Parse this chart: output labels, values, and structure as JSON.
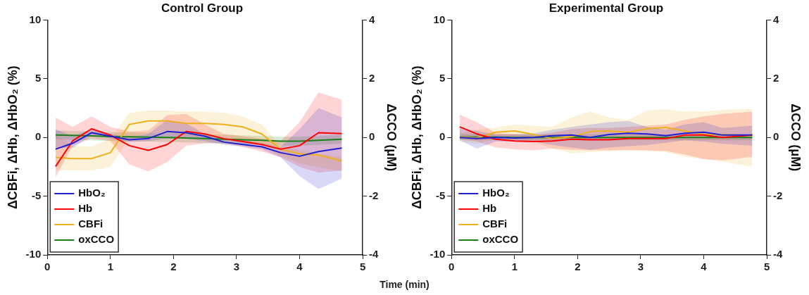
{
  "chart_data": [
    {
      "type": "line",
      "title": "Control Group",
      "xlabel": "Time (min)",
      "ylabel": "ΔCBFi, ΔHb, ΔHbO₂ (%)",
      "y2label": "ΔCCO (μM)",
      "x": [
        0.13,
        0.4,
        0.7,
        1.0,
        1.3,
        1.6,
        1.9,
        2.2,
        2.5,
        2.8,
        3.1,
        3.4,
        3.7,
        4.0,
        4.3,
        4.67
      ],
      "xlim": [
        0,
        5
      ],
      "xticks": [
        0,
        1,
        2,
        3,
        4,
        5
      ],
      "ylim": [
        -10,
        10
      ],
      "yticks": [
        -10,
        -5,
        0,
        5,
        10
      ],
      "y2lim": [
        -4,
        4
      ],
      "y2ticks": [
        -4,
        -2,
        0,
        2,
        4
      ],
      "grid": false,
      "legend": "bottom left",
      "series": [
        {
          "name": "HbO₂",
          "color": "#2020d0",
          "values": [
            -1.0,
            -0.5,
            0.4,
            0.1,
            -0.2,
            -0.1,
            0.5,
            0.4,
            0.1,
            -0.4,
            -0.6,
            -0.8,
            -1.3,
            -1.6,
            -1.2,
            -0.9
          ],
          "lower": [
            -0.9,
            -0.9,
            0.2,
            -0.1,
            -0.4,
            -0.3,
            -0.1,
            -0.1,
            -0.3,
            -0.6,
            -0.8,
            -1.0,
            -1.7,
            -3.3,
            -4.4,
            -3.5
          ],
          "upper": [
            0.7,
            0.1,
            0.7,
            0.3,
            0,
            0.3,
            1.5,
            1.2,
            0.3,
            -0.1,
            -0.2,
            -0.5,
            -0.8,
            0.7,
            2.5,
            1.7
          ]
        },
        {
          "name": "Hb",
          "color": "#ff0000",
          "values": [
            -2.47,
            -0.3,
            0.73,
            0.2,
            -0.7,
            -1.1,
            -0.6,
            0.5,
            0.3,
            -0.1,
            -0.35,
            -0.6,
            -1.0,
            -0.7,
            0.4,
            0.33
          ],
          "lower": [
            -3.4,
            -0.7,
            -0.1,
            -0.3,
            -2.3,
            -2.9,
            -2.1,
            -0.7,
            -0.5,
            -0.5,
            -0.8,
            -1.2,
            -1.7,
            -2.5,
            -3.0,
            -2.8
          ],
          "upper": [
            1.7,
            0.9,
            1.8,
            0.9,
            0.5,
            0.6,
            1.9,
            2.0,
            1.1,
            0.3,
            0.1,
            -0.1,
            -0.3,
            1.3,
            3.85,
            3.2
          ]
        },
        {
          "name": "CBFi",
          "color": "#edb120",
          "values": [
            -1.7,
            -1.8,
            -1.8,
            -1.3,
            1.1,
            1.4,
            1.4,
            1.2,
            1.2,
            1.1,
            0.9,
            0.3,
            -1.0,
            -1.4,
            -1.5,
            -2.0
          ],
          "lower": [
            -2.8,
            -2.8,
            -2.8,
            -2.5,
            -0.1,
            0.4,
            0.4,
            0.2,
            0.1,
            0,
            -0.2,
            -0.6,
            -1.6,
            -2.2,
            -2.5,
            -2.9
          ],
          "upper": [
            0.3,
            -0.7,
            -0.8,
            -0.1,
            2.1,
            2.3,
            2.3,
            2.2,
            2.2,
            2.1,
            1.8,
            1.1,
            -0.7,
            -1.1,
            -1.4,
            -1.7
          ]
        },
        {
          "name": "oxCCO",
          "color": "#1a801a",
          "axis": "y2",
          "values": [
            0.08,
            0.07,
            0.05,
            0.03,
            0.02,
            0.01,
            0,
            -0.02,
            -0.04,
            -0.06,
            -0.08,
            -0.1,
            -0.13,
            -0.13,
            -0.1,
            -0.06
          ],
          "lower": [
            -0.07,
            -0.08,
            -0.1,
            -0.12,
            -0.13,
            -0.14,
            -0.15,
            -0.17,
            -0.19,
            -0.21,
            -0.23,
            -0.25,
            -0.28,
            -0.28,
            -0.25,
            -0.21
          ],
          "upper": [
            0.23,
            0.22,
            0.2,
            0.18,
            0.17,
            0.16,
            0.15,
            0.13,
            0.11,
            0.09,
            0.07,
            0.05,
            0.02,
            0.02,
            0.05,
            0.09
          ]
        }
      ]
    },
    {
      "type": "line",
      "title": "Experimental Group",
      "ylabel": "ΔCBFi, ΔHb, ΔHbO₂ (%)",
      "y2label": "ΔCCO (μM)",
      "x": [
        0.13,
        0.4,
        0.7,
        1.0,
        1.3,
        1.6,
        1.9,
        2.2,
        2.5,
        2.8,
        3.1,
        3.4,
        3.7,
        4.0,
        4.3,
        4.77
      ],
      "xlim": [
        0,
        5
      ],
      "xticks": [
        0,
        1,
        2,
        3,
        4,
        5
      ],
      "ylim": [
        -10,
        10
      ],
      "yticks": [
        -10,
        -5,
        0,
        5,
        10
      ],
      "y2lim": [
        -4,
        4
      ],
      "y2ticks": [
        -4,
        -2,
        0,
        2,
        4
      ],
      "grid": false,
      "legend": "bottom left",
      "series": [
        {
          "name": "HbO₂",
          "color": "#2020d0",
          "values": [
            0,
            -0.1,
            0,
            -0.05,
            0,
            0.15,
            0.2,
            0,
            0.25,
            0.35,
            0.3,
            0.15,
            0.35,
            0.45,
            0.2,
            0.2
          ],
          "lower": [
            -0.25,
            -0.95,
            -0.35,
            -0.35,
            -0.35,
            -0.65,
            -0.85,
            -1.05,
            -0.85,
            -0.75,
            -0.65,
            -0.45,
            -0.25,
            -0.35,
            -0.55,
            -0.7
          ],
          "upper": [
            0.8,
            0.55,
            0.25,
            0.25,
            0.35,
            0.65,
            0.9,
            1.1,
            1.3,
            1.4,
            0.9,
            0.65,
            1.1,
            1.3,
            0.8,
            1.0
          ]
        },
        {
          "name": "Hb",
          "color": "#ff0000",
          "values": [
            0.9,
            0.3,
            -0.15,
            -0.3,
            -0.35,
            -0.3,
            -0.15,
            -0.2,
            -0.2,
            -0.1,
            -0.1,
            -0.1,
            0.2,
            0.2,
            0,
            0.2
          ],
          "lower": [
            -0.15,
            -0.35,
            -0.85,
            -1.0,
            -1.1,
            -0.95,
            -1.05,
            -1.1,
            -1.1,
            -1.1,
            -1.1,
            -1.15,
            -1.45,
            -1.85,
            -1.95,
            -1.65
          ],
          "upper": [
            1.95,
            1.3,
            0.4,
            0.3,
            0.2,
            0.4,
            0.7,
            0.8,
            0.8,
            0.9,
            1.0,
            1.1,
            1.5,
            1.8,
            2.0,
            2.2
          ]
        },
        {
          "name": "CBFi",
          "color": "#edb120",
          "values": [
            0.05,
            -0.05,
            0.45,
            0.55,
            0.25,
            -0.1,
            0.05,
            0.5,
            0.55,
            0.45,
            0.75,
            0.85,
            0.55,
            0.25,
            0.25,
            0.15
          ],
          "lower": [
            -0.35,
            -0.55,
            -0.15,
            -0.15,
            -0.35,
            -0.95,
            -1.35,
            -1.25,
            -1.15,
            -1.05,
            -1.15,
            -1.25,
            -1.65,
            -1.85,
            -2.05,
            -2.5
          ],
          "upper": [
            0.35,
            0.65,
            0.85,
            1.1,
            1.0,
            0.9,
            1.7,
            2.2,
            1.7,
            1.5,
            2.3,
            2.4,
            2.2,
            2.2,
            2.35,
            2.45
          ]
        },
        {
          "name": "oxCCO",
          "color": "#1a801a",
          "axis": "y2",
          "values": [
            0.02,
            0.01,
            0.01,
            0,
            0,
            0,
            0,
            0,
            0,
            0,
            0,
            0,
            0,
            0,
            0,
            0
          ],
          "lower": [
            -0.08,
            -0.09,
            -0.09,
            -0.1,
            -0.1,
            -0.1,
            -0.1,
            -0.1,
            -0.1,
            -0.1,
            -0.1,
            -0.1,
            -0.1,
            -0.1,
            -0.1,
            -0.1
          ],
          "upper": [
            0.12,
            0.11,
            0.11,
            0.1,
            0.1,
            0.1,
            0.1,
            0.1,
            0.1,
            0.1,
            0.1,
            0.1,
            0.1,
            0.1,
            0.1,
            0.1
          ]
        }
      ]
    }
  ]
}
